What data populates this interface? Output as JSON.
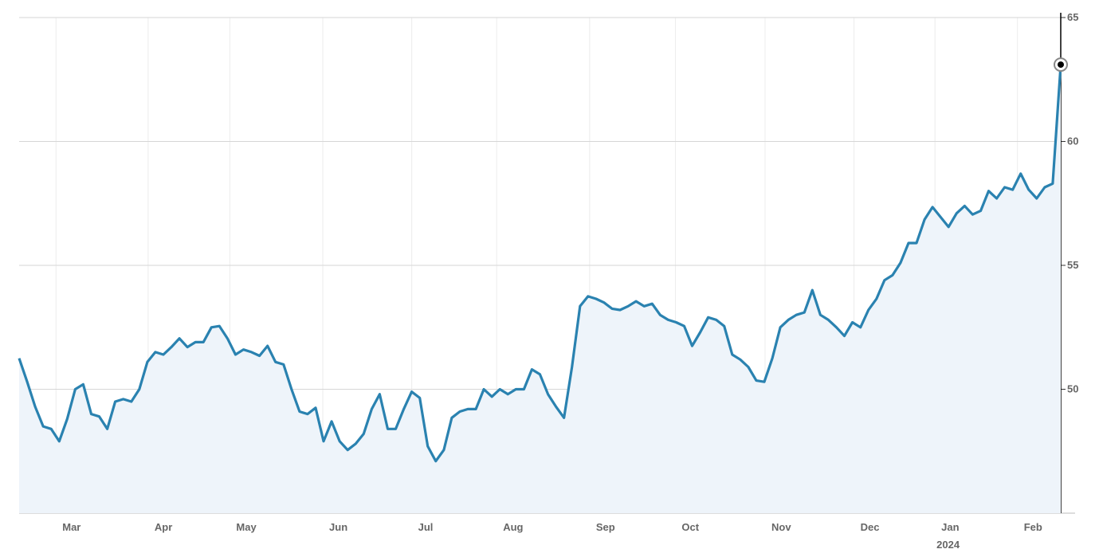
{
  "chart_data": {
    "type": "area",
    "color": "#2a82b0",
    "fill": "#eef4fa",
    "grid": true,
    "xlim": [
      0,
      130
    ],
    "ylim": [
      45,
      65
    ],
    "yticks": [
      50,
      55,
      60,
      65
    ],
    "xticks": [
      {
        "value": 4.6,
        "label": "Mar"
      },
      {
        "value": 16.1,
        "label": "Apr"
      },
      {
        "value": 26.3,
        "label": "May"
      },
      {
        "value": 37.9,
        "label": "Jun"
      },
      {
        "value": 49.0,
        "label": "Jul"
      },
      {
        "value": 59.6,
        "label": "Aug"
      },
      {
        "value": 71.2,
        "label": "Sep"
      },
      {
        "value": 81.9,
        "label": "Oct"
      },
      {
        "value": 93.1,
        "label": "Nov"
      },
      {
        "value": 104.2,
        "label": "Dec"
      },
      {
        "value": 114.3,
        "label": "Jan",
        "sublabel": "2024"
      },
      {
        "value": 124.6,
        "label": "Feb"
      }
    ],
    "values": [
      51.25,
      50.3,
      49.3,
      48.5,
      48.4,
      47.9,
      48.8,
      50.0,
      50.2,
      49.0,
      48.9,
      48.4,
      49.5,
      49.6,
      49.5,
      50.0,
      51.1,
      51.5,
      51.4,
      51.7,
      52.05,
      51.7,
      51.9,
      51.9,
      52.5,
      52.55,
      52.05,
      51.4,
      51.6,
      51.5,
      51.35,
      51.75,
      51.1,
      51.0,
      50.0,
      49.1,
      49.0,
      49.25,
      47.9,
      48.7,
      47.9,
      47.55,
      47.8,
      48.2,
      49.2,
      49.8,
      48.4,
      48.4,
      49.2,
      49.9,
      49.65,
      47.7,
      47.1,
      47.55,
      48.85,
      49.1,
      49.2,
      49.2,
      50.0,
      49.7,
      50.0,
      49.8,
      50.0,
      50.0,
      50.8,
      50.6,
      49.8,
      49.3,
      48.85,
      50.9,
      53.35,
      53.75,
      53.65,
      53.5,
      53.25,
      53.2,
      53.35,
      53.55,
      53.35,
      53.45,
      53.0,
      52.8,
      52.7,
      52.55,
      51.75,
      52.3,
      52.9,
      52.8,
      52.55,
      51.4,
      51.2,
      50.9,
      50.35,
      50.3,
      51.25,
      52.5,
      52.8,
      53.0,
      53.1,
      54.0,
      53.0,
      52.8,
      52.5,
      52.15,
      52.7,
      52.5,
      53.2,
      53.65,
      54.4,
      54.6,
      55.1,
      55.9,
      55.9,
      56.85,
      57.35,
      56.95,
      56.55,
      57.1,
      57.4,
      57.05,
      57.2,
      58.0,
      57.7,
      58.15,
      58.05,
      58.7,
      58.05,
      57.7,
      58.15,
      58.3,
      63.1
    ]
  }
}
